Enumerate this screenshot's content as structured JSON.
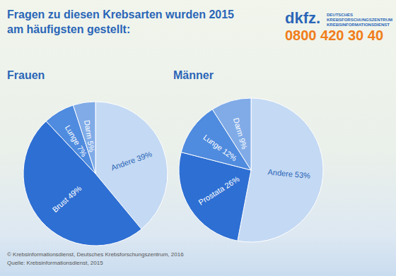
{
  "title": "Fragen zu diesen Krebsarten wurden 2015\nam häufigsten gestellt:",
  "logo": "dkfz.",
  "organization": [
    "DEUTSCHES",
    "KREBSFORSCHUNGSZENTRUM",
    "KREBSINFORMATIONSDIENST"
  ],
  "phone": "0800 420 30 40",
  "footer": [
    "© Krebsinformationsdienst, Deutsches Krebsforschungszentrum, 2016",
    "Quelle: Krebsinformationsdienst, 2015"
  ],
  "chart_data": [
    {
      "type": "pie",
      "title": "Frauen",
      "categories": [
        "Andere",
        "Brust",
        "Lunge",
        "Darm"
      ],
      "values": [
        39,
        49,
        7,
        5
      ],
      "value_labels": [
        "Andere 39%",
        "Brust 49%",
        "Lunge 7%",
        "Darm 5%"
      ],
      "colors": [
        "#c4d9f3",
        "#2e6fd3",
        "#4f8bde",
        "#80abe7"
      ],
      "data_labels": true
    },
    {
      "type": "pie",
      "title": "Männer",
      "categories": [
        "Andere",
        "Prostata",
        "Lunge",
        "Darm"
      ],
      "values": [
        53,
        26,
        12,
        9
      ],
      "value_labels": [
        "Andere 53%",
        "Prostata 26%",
        "Lunge 12%",
        "Darm 9%"
      ],
      "colors": [
        "#c4d9f3",
        "#2e6fd3",
        "#4f8bde",
        "#80abe7"
      ],
      "data_labels": true
    }
  ]
}
